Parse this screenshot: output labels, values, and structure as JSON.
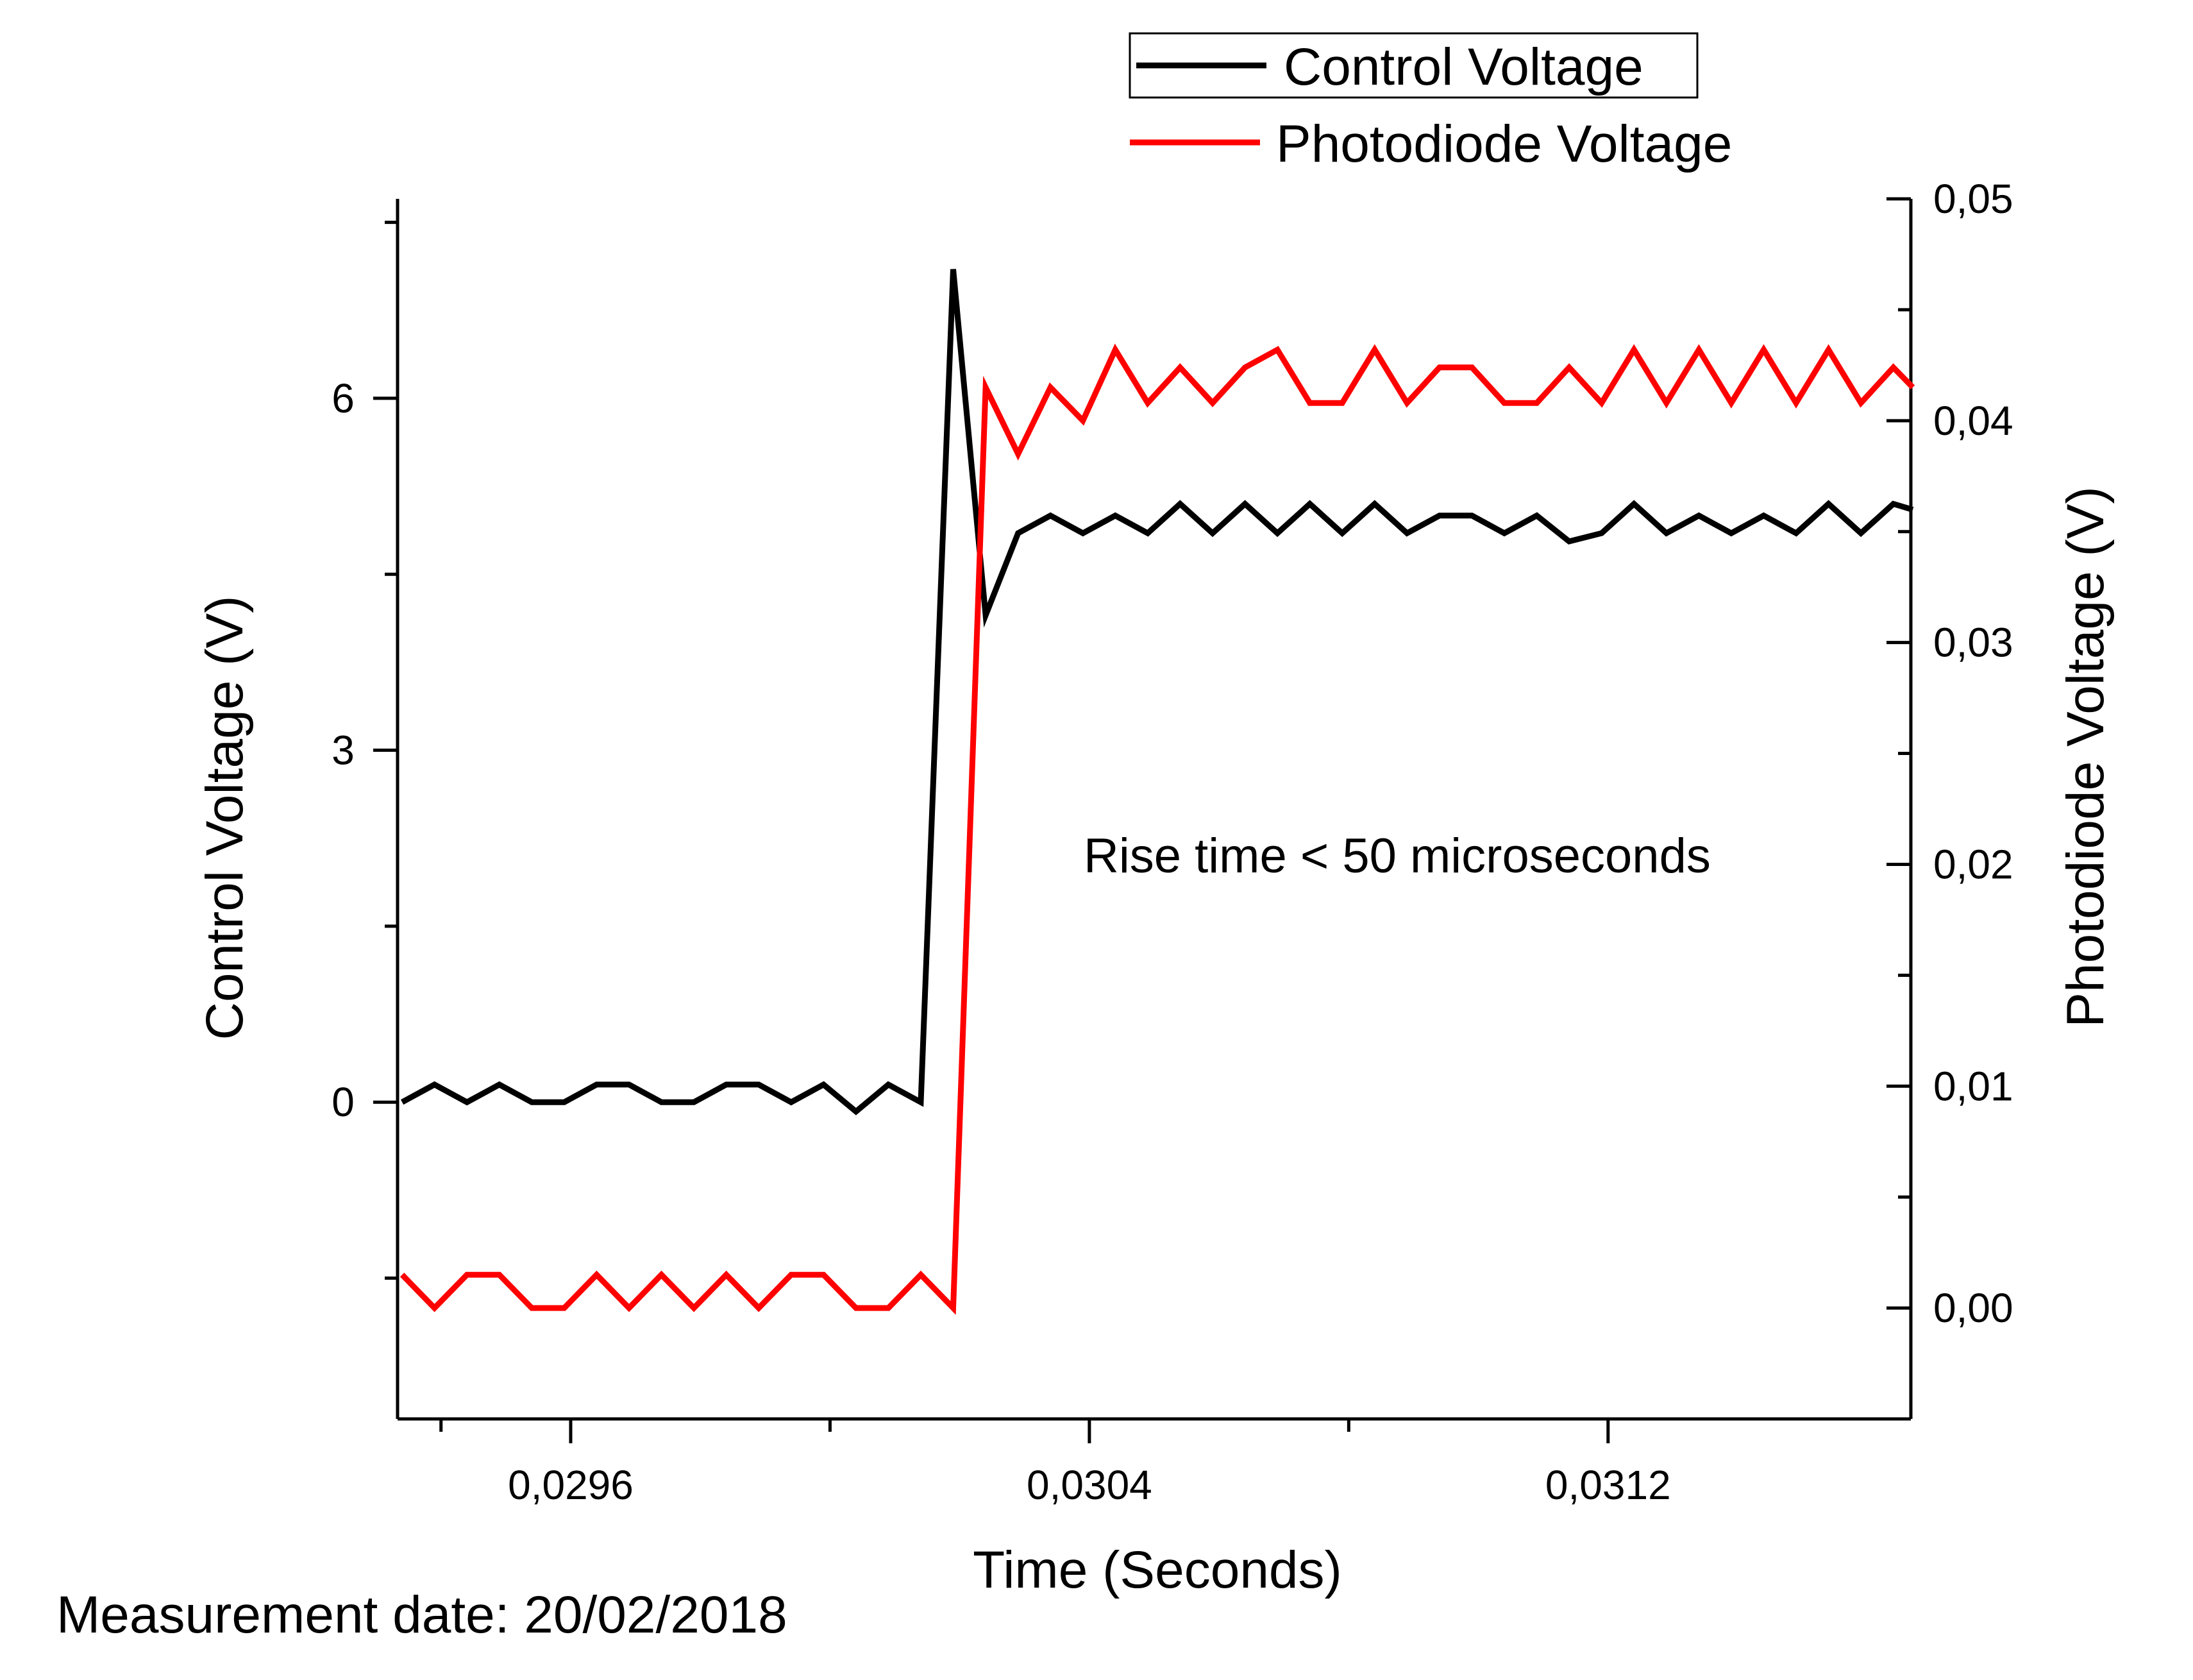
{
  "chart_data": {
    "type": "line",
    "xlabel": "Time (Seconds)",
    "ylabel_left": "Control Voltage (V)",
    "ylabel_right": "Photodiode Voltage (V)",
    "xlim": [
      0.029333,
      0.031667
    ],
    "ylim_left": [
      -2.7,
      7.7
    ],
    "ylim_right": [
      -0.005,
      0.05
    ],
    "x_ticks": [
      {
        "value": 0.0296,
        "label": "0,0296"
      },
      {
        "value": 0.0304,
        "label": "0,0304"
      },
      {
        "value": 0.0312,
        "label": "0,0312"
      }
    ],
    "x_minor_ticks": [
      0.0294,
      0.03,
      0.0308
    ],
    "y_left_ticks": [
      {
        "value": 0,
        "label": "0"
      },
      {
        "value": 3,
        "label": "3"
      },
      {
        "value": 6,
        "label": "6"
      }
    ],
    "y_left_minor_ticks": [
      -1.5,
      1.5,
      4.5,
      7.5
    ],
    "y_right_ticks": [
      {
        "value": 0.0,
        "label": "0,00"
      },
      {
        "value": 0.01,
        "label": "0,01"
      },
      {
        "value": 0.02,
        "label": "0,02"
      },
      {
        "value": 0.03,
        "label": "0,03"
      },
      {
        "value": 0.04,
        "label": "0,04"
      },
      {
        "value": 0.05,
        "label": "0,05"
      }
    ],
    "y_right_minor_ticks": [
      -0.005,
      0.005,
      0.015,
      0.025,
      0.035,
      0.045
    ],
    "legend_position": "top-right",
    "grid": false,
    "series": [
      {
        "name": "Control Voltage",
        "axis": "left",
        "color": "#000000",
        "x": [
          0.02934,
          0.02939,
          0.02944,
          0.02949,
          0.02954,
          0.02959,
          0.02964,
          0.02969,
          0.02974,
          0.02979,
          0.02984,
          0.02989,
          0.02994,
          0.02999,
          0.03004,
          0.03009,
          0.03014,
          0.03019,
          0.03024,
          0.03029,
          0.03034,
          0.03039,
          0.03044,
          0.03049,
          0.03054,
          0.03059,
          0.03064,
          0.03069,
          0.03074,
          0.03079,
          0.03084,
          0.03089,
          0.03094,
          0.03099,
          0.03104,
          0.03109,
          0.03114,
          0.03119,
          0.03124,
          0.03129,
          0.03134,
          0.03139,
          0.03144,
          0.03149,
          0.03154,
          0.03159,
          0.03164,
          0.03167
        ],
        "values": [
          0.0,
          0.15,
          0.0,
          0.15,
          0.0,
          0.0,
          0.15,
          0.15,
          0.0,
          0.0,
          0.15,
          0.15,
          0.0,
          0.15,
          -0.08,
          0.15,
          0.0,
          7.1,
          4.15,
          4.85,
          5.0,
          4.85,
          5.0,
          4.85,
          5.1,
          4.85,
          5.1,
          4.85,
          5.1,
          4.85,
          5.1,
          4.85,
          5.0,
          5.0,
          4.85,
          5.0,
          4.78,
          4.85,
          5.1,
          4.85,
          5.0,
          4.85,
          5.0,
          4.85,
          5.1,
          4.85,
          5.1,
          5.05
        ]
      },
      {
        "name": "Photodiode Voltage",
        "axis": "right",
        "color": "#ff0000",
        "x": [
          0.02934,
          0.02939,
          0.02944,
          0.02949,
          0.02954,
          0.02959,
          0.02964,
          0.02969,
          0.02974,
          0.02979,
          0.02984,
          0.02989,
          0.02994,
          0.02999,
          0.03004,
          0.03009,
          0.03014,
          0.03019,
          0.03024,
          0.03029,
          0.03034,
          0.03039,
          0.03044,
          0.03049,
          0.03054,
          0.03059,
          0.03064,
          0.03069,
          0.03074,
          0.03079,
          0.03084,
          0.03089,
          0.03094,
          0.03099,
          0.03104,
          0.03109,
          0.03114,
          0.03119,
          0.03124,
          0.03129,
          0.03134,
          0.03139,
          0.03144,
          0.03149,
          0.03154,
          0.03159,
          0.03164,
          0.03167
        ],
        "values": [
          0.0015,
          0.0,
          0.0015,
          0.0015,
          0.0,
          0.0,
          0.0015,
          0.0,
          0.0015,
          0.0,
          0.0015,
          0.0,
          0.0015,
          0.0015,
          0.0,
          0.0,
          0.0015,
          0.0,
          0.0415,
          0.0385,
          0.0415,
          0.04,
          0.0432,
          0.0408,
          0.0424,
          0.0408,
          0.0424,
          0.0432,
          0.0408,
          0.0408,
          0.0432,
          0.0408,
          0.0424,
          0.0424,
          0.0408,
          0.0408,
          0.0424,
          0.0408,
          0.0432,
          0.0408,
          0.0432,
          0.0408,
          0.0432,
          0.0408,
          0.0432,
          0.0408,
          0.0424,
          0.0415
        ]
      }
    ],
    "annotations": [
      {
        "text": "Rise time < 50 microseconds"
      },
      {
        "text": "Measurement date: 20/02/2018"
      }
    ]
  }
}
